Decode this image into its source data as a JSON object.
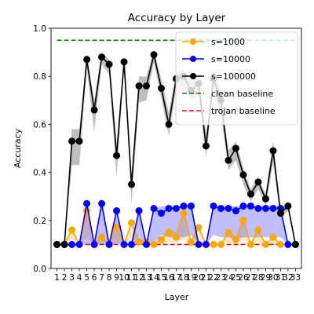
{
  "chart_data": {
    "type": "line",
    "title": "Accuracy by Layer",
    "xlabel": "Layer",
    "ylabel": "Accuracy",
    "ylim": [
      0.0,
      1.0
    ],
    "yticks": [
      "0.0",
      "0.2",
      "0.4",
      "0.6",
      "0.8",
      "1.0"
    ],
    "categories": [
      1,
      2,
      3,
      4,
      5,
      6,
      7,
      8,
      9,
      10,
      11,
      12,
      13,
      14,
      15,
      16,
      17,
      18,
      19,
      20,
      21,
      22,
      23,
      24,
      25,
      26,
      27,
      28,
      29,
      30,
      31,
      32,
      33
    ],
    "tick_labels": [
      "1",
      "2",
      "3",
      "4",
      "5",
      "6",
      "7",
      "8",
      "9",
      "10",
      "11",
      "12",
      "13",
      "14",
      "15",
      "16",
      "17",
      "18",
      "19",
      "20",
      "21",
      "22",
      "23",
      "24",
      "25",
      "26",
      "27",
      "28",
      "29",
      "30",
      "31",
      "32",
      "33"
    ],
    "grid": false,
    "legend_position": "top-right",
    "series": [
      {
        "name": "s=1000",
        "color": "#ffa500",
        "values": [
          0.1,
          0.1,
          0.16,
          0.1,
          0.24,
          0.1,
          0.13,
          0.1,
          0.17,
          0.1,
          0.19,
          0.11,
          0.11,
          0.1,
          0.12,
          0.15,
          0.13,
          0.23,
          0.11,
          0.17,
          0.1,
          0.1,
          0.1,
          0.15,
          0.12,
          0.2,
          0.1,
          0.16,
          0.1,
          0.13,
          0.1,
          0.1,
          0.1
        ],
        "lower": [
          0.1,
          0.1,
          0.12,
          0.1,
          0.13,
          0.1,
          0.11,
          0.1,
          0.11,
          0.1,
          0.12,
          0.1,
          0.1,
          0.1,
          0.1,
          0.11,
          0.11,
          0.12,
          0.1,
          0.11,
          0.1,
          0.1,
          0.1,
          0.11,
          0.1,
          0.12,
          0.1,
          0.11,
          0.1,
          0.1,
          0.1,
          0.1,
          0.1
        ],
        "upper": [
          0.1,
          0.1,
          0.18,
          0.1,
          0.26,
          0.1,
          0.15,
          0.1,
          0.19,
          0.1,
          0.21,
          0.12,
          0.12,
          0.1,
          0.13,
          0.17,
          0.15,
          0.25,
          0.12,
          0.19,
          0.1,
          0.1,
          0.1,
          0.17,
          0.13,
          0.22,
          0.1,
          0.18,
          0.1,
          0.14,
          0.1,
          0.1,
          0.1
        ]
      },
      {
        "name": "s=10000",
        "color": "#0000ff",
        "values": [
          0.1,
          0.1,
          0.1,
          0.1,
          0.27,
          0.1,
          0.27,
          0.1,
          0.24,
          0.1,
          0.1,
          0.24,
          0.1,
          0.25,
          0.23,
          0.25,
          0.25,
          0.26,
          0.26,
          0.1,
          0.1,
          0.26,
          0.25,
          0.25,
          0.24,
          0.26,
          0.26,
          0.25,
          0.25,
          0.25,
          0.25,
          0.1,
          0.1
        ],
        "lower": [
          0.1,
          0.1,
          0.1,
          0.1,
          0.1,
          0.1,
          0.1,
          0.1,
          0.1,
          0.1,
          0.1,
          0.1,
          0.1,
          0.1,
          0.14,
          0.13,
          0.13,
          0.13,
          0.14,
          0.1,
          0.1,
          0.14,
          0.13,
          0.13,
          0.12,
          0.13,
          0.13,
          0.13,
          0.13,
          0.13,
          0.13,
          0.1,
          0.1
        ],
        "upper": [
          0.1,
          0.1,
          0.1,
          0.1,
          0.27,
          0.1,
          0.27,
          0.1,
          0.24,
          0.1,
          0.1,
          0.24,
          0.1,
          0.25,
          0.26,
          0.26,
          0.26,
          0.26,
          0.26,
          0.1,
          0.1,
          0.26,
          0.26,
          0.26,
          0.26,
          0.26,
          0.26,
          0.26,
          0.26,
          0.26,
          0.26,
          0.1,
          0.1
        ]
      },
      {
        "name": "s=100000",
        "color": "#000000",
        "values": [
          0.1,
          0.1,
          0.53,
          0.53,
          0.87,
          0.66,
          0.88,
          0.85,
          0.47,
          0.86,
          0.35,
          0.76,
          0.76,
          0.89,
          0.75,
          0.6,
          0.79,
          0.8,
          0.74,
          0.77,
          0.51,
          0.79,
          0.7,
          0.45,
          0.5,
          0.39,
          0.31,
          0.36,
          0.29,
          0.49,
          0.23,
          0.26,
          0.1
        ],
        "lower": [
          0.1,
          0.1,
          0.43,
          0.43,
          0.83,
          0.57,
          0.85,
          0.81,
          0.38,
          0.83,
          0.27,
          0.69,
          0.7,
          0.86,
          0.71,
          0.55,
          0.75,
          0.76,
          0.7,
          0.72,
          0.46,
          0.75,
          0.64,
          0.41,
          0.45,
          0.35,
          0.28,
          0.33,
          0.26,
          0.44,
          0.21,
          0.24,
          0.1
        ],
        "upper": [
          0.1,
          0.1,
          0.58,
          0.58,
          0.89,
          0.7,
          0.9,
          0.87,
          0.52,
          0.88,
          0.39,
          0.8,
          0.8,
          0.91,
          0.79,
          0.65,
          0.82,
          0.83,
          0.77,
          0.8,
          0.56,
          0.82,
          0.74,
          0.49,
          0.53,
          0.42,
          0.33,
          0.38,
          0.31,
          0.53,
          0.25,
          0.28,
          0.1
        ]
      }
    ],
    "baselines": [
      {
        "name": "clean baseline",
        "value": 0.95,
        "color": "#008000"
      },
      {
        "name": "trojan baseline",
        "value": 0.1,
        "color": "#ff0000"
      }
    ]
  }
}
